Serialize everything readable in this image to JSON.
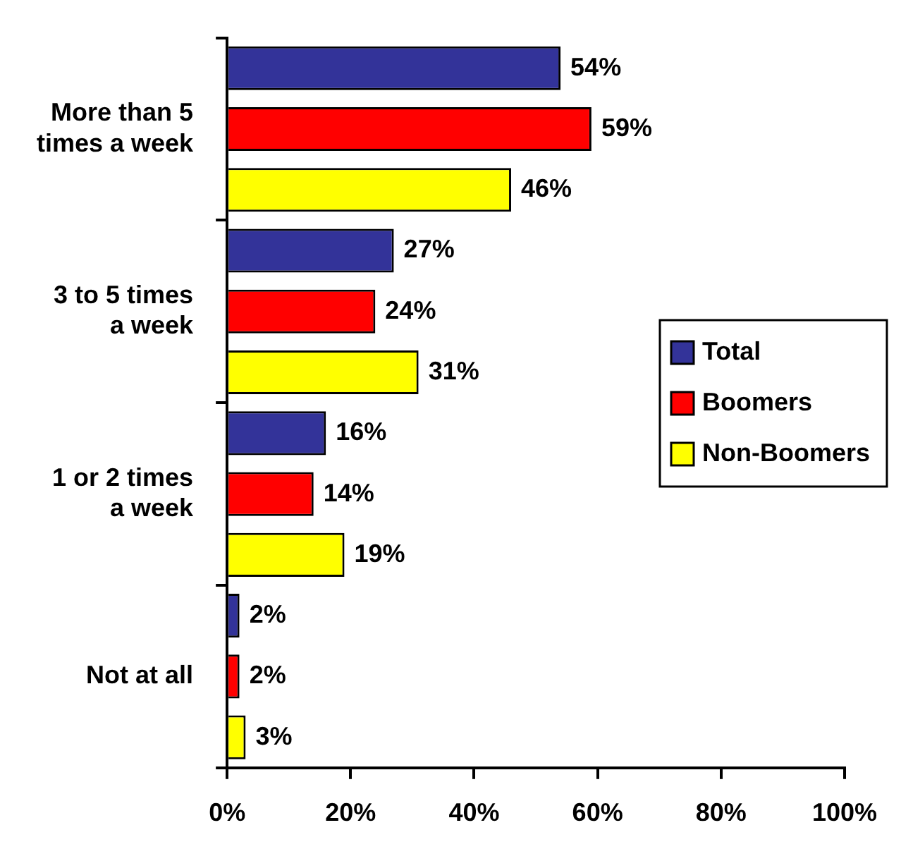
{
  "chart_data": {
    "type": "bar",
    "orientation": "horizontal",
    "categories": [
      "More than 5 times a week",
      "3 to 5 times a week",
      "1 or 2 times a week",
      "Not at all"
    ],
    "series": [
      {
        "name": "Total",
        "color": "#333399",
        "values": [
          54,
          27,
          16,
          2
        ],
        "value_labels": [
          "54%",
          "27%",
          "16%",
          "2%"
        ]
      },
      {
        "name": "Boomers",
        "color": "#ff0000",
        "values": [
          59,
          24,
          14,
          2
        ],
        "value_labels": [
          "59%",
          "24%",
          "14%",
          "2%"
        ]
      },
      {
        "name": "Non-Boomers",
        "color": "#ffff00",
        "values": [
          46,
          31,
          19,
          3
        ],
        "value_labels": [
          "46%",
          "31%",
          "19%",
          "3%"
        ]
      }
    ],
    "xlim": [
      0,
      100
    ],
    "xticks": [
      {
        "value": 0,
        "label": "0%"
      },
      {
        "value": 20,
        "label": "20%"
      },
      {
        "value": 40,
        "label": "40%"
      },
      {
        "value": 60,
        "label": "60%"
      },
      {
        "value": 80,
        "label": "80%"
      },
      {
        "value": 100,
        "label": "100%"
      }
    ],
    "grid": false,
    "legend": "right"
  }
}
